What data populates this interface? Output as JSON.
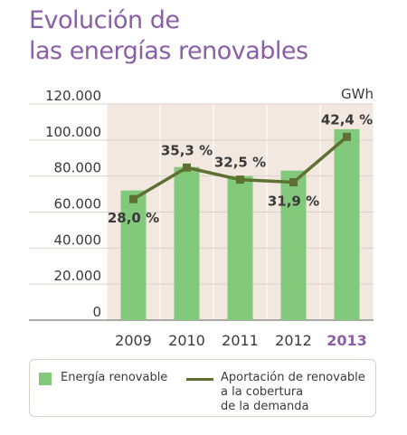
{
  "title_line1": "Evolución de",
  "title_line2": "las energías renovables",
  "chart_data": {
    "type": "bar+line",
    "unit_label": "GWh",
    "categories": [
      "2009",
      "2010",
      "2011",
      "2012",
      "2013"
    ],
    "highlight_category": "2013",
    "ylim": [
      0,
      120000
    ],
    "y_ticks": [
      "0",
      "20.000",
      "40.000",
      "60.000",
      "80.000",
      "100.000",
      "120.000"
    ],
    "series": [
      {
        "name": "Energía renovable",
        "kind": "bar",
        "values": [
          72000,
          85000,
          80000,
          83000,
          106000
        ],
        "color": "#82c97b"
      },
      {
        "name": "Aportación de renovable\na la cobertura\nde la demanda",
        "kind": "line",
        "values": [
          28.0,
          35.3,
          32.5,
          31.9,
          42.4
        ],
        "labels": [
          "28,0 %",
          "35,3 %",
          "32,5 %",
          "31,9 %",
          "42,4 %"
        ],
        "color": "#5e7133"
      }
    ],
    "grid": true,
    "legend": "bottom"
  }
}
